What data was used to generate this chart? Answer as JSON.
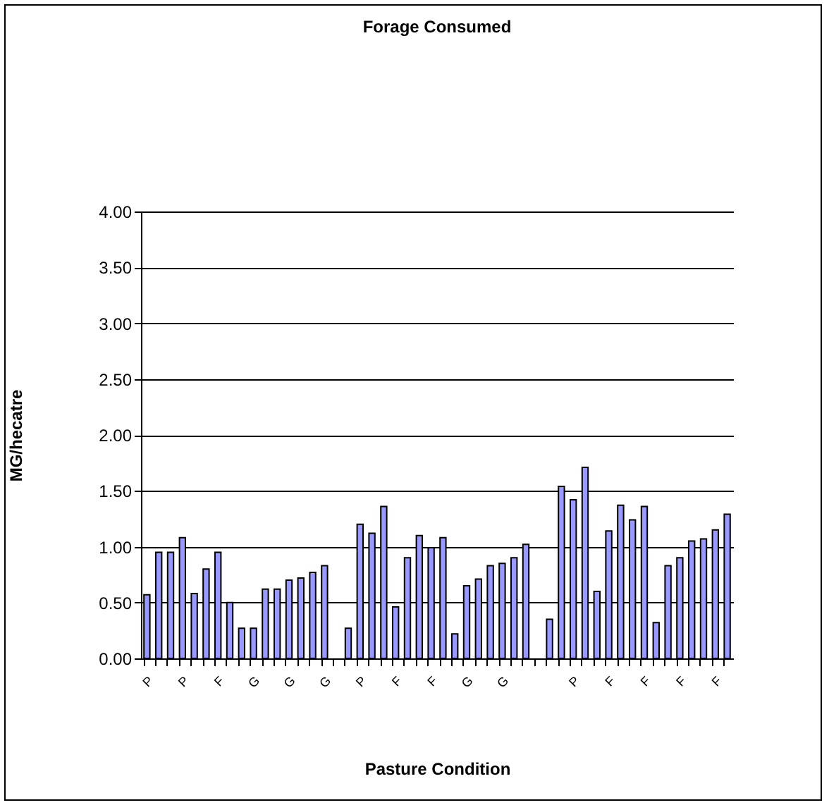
{
  "chart_data": {
    "type": "bar",
    "title": "Forage Consumed",
    "xlabel": "Pasture Condition",
    "ylabel": "MG/hecatre",
    "categories": [
      "P",
      null,
      null,
      "P",
      null,
      null,
      "F",
      null,
      null,
      "G",
      null,
      null,
      "G",
      null,
      null,
      "G",
      null,
      null,
      "P",
      null,
      null,
      "F",
      null,
      null,
      "F",
      null,
      null,
      "G",
      null,
      null,
      "G",
      null,
      null,
      null,
      null,
      null,
      "P",
      null,
      null,
      "F",
      null,
      null,
      "F",
      null,
      null,
      "F",
      null,
      null,
      "F",
      null
    ],
    "values": [
      0.57,
      0.95,
      0.95,
      1.08,
      0.58,
      0.8,
      0.95,
      0.5,
      0.27,
      0.27,
      0.62,
      0.62,
      0.7,
      0.72,
      0.77,
      0.83,
      null,
      0.27,
      1.2,
      1.12,
      1.36,
      0.46,
      0.9,
      1.1,
      0.99,
      1.08,
      0.22,
      0.65,
      0.71,
      0.83,
      0.85,
      0.9,
      1.02,
      null,
      0.35,
      1.54,
      1.42,
      1.71,
      0.6,
      1.14,
      1.37,
      1.24,
      1.36,
      0.32,
      0.83,
      0.9,
      1.05,
      1.07,
      1.15,
      1.29
    ],
    "color": "#9999ff",
    "ylim": [
      0,
      4
    ],
    "yticks": [
      {
        "value": 0,
        "label": "0.00"
      },
      {
        "value": 0.5,
        "label": "0.50"
      },
      {
        "value": 1,
        "label": "1.00"
      },
      {
        "value": 1.5,
        "label": "1.50"
      },
      {
        "value": 2,
        "label": "2.00"
      },
      {
        "value": 2.5,
        "label": "2.50"
      },
      {
        "value": 3,
        "label": "3.00"
      },
      {
        "value": 3.5,
        "label": "3.50"
      },
      {
        "value": 4,
        "label": "4.00"
      }
    ],
    "grid": "y"
  }
}
